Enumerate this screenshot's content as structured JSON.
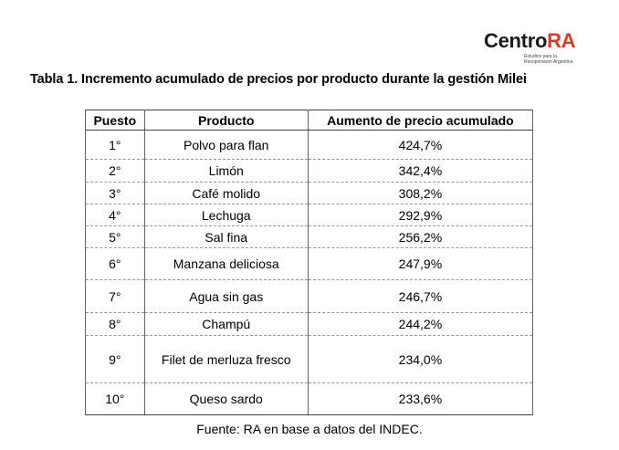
{
  "logo": {
    "centro": "Centro",
    "ra": "RA",
    "subtitle_line1": "Estudios para la",
    "subtitle_line2": "Recuperación Argentina"
  },
  "title": "Tabla 1. Incremento acumulado de precios por producto durante la gestión Milei",
  "table": {
    "headers": [
      "Puesto",
      "Producto",
      "Aumento de precio acumulado"
    ],
    "rows": [
      [
        "1°",
        "Polvo para flan",
        "424,7%"
      ],
      [
        "2°",
        "Limón",
        "342,4%"
      ],
      [
        "3°",
        "Café molido",
        "308,2%"
      ],
      [
        "4°",
        "Lechuga",
        "292,9%"
      ],
      [
        "5°",
        "Sal fina",
        "256,2%"
      ],
      [
        "6°",
        "Manzana deliciosa",
        "247,9%"
      ],
      [
        "7°",
        "Agua sin gas",
        "246,7%"
      ],
      [
        "8°",
        "Champú",
        "244,2%"
      ],
      [
        "9°",
        "Filet de merluza fresco",
        "234,0%"
      ],
      [
        "10°",
        "Queso sardo",
        "233,6%"
      ]
    ]
  },
  "footer": "Fuente: RA en base a datos del INDEC."
}
